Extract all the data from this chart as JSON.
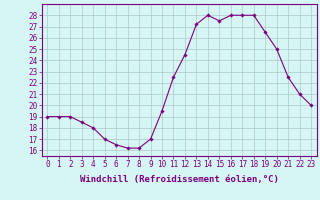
{
  "x": [
    0,
    1,
    2,
    3,
    4,
    5,
    6,
    7,
    8,
    9,
    10,
    11,
    12,
    13,
    14,
    15,
    16,
    17,
    18,
    19,
    20,
    21,
    22,
    23
  ],
  "y": [
    19,
    19,
    19,
    18.5,
    18,
    17,
    16.5,
    16.2,
    16.2,
    17,
    19.5,
    22.5,
    24.5,
    27.2,
    28,
    27.5,
    28,
    28,
    28,
    26.5,
    25,
    22.5,
    21,
    20
  ],
  "line_color": "#7b0080",
  "marker": "D",
  "marker_size": 1.8,
  "bg_color": "#d6f5f5",
  "grid_color": "#b0c8c8",
  "xlabel": "Windchill (Refroidissement éolien,°C)",
  "ylim": [
    15.5,
    29
  ],
  "xlim": [
    -0.5,
    23.5
  ],
  "yticks": [
    16,
    17,
    18,
    19,
    20,
    21,
    22,
    23,
    24,
    25,
    26,
    27,
    28
  ],
  "xticks": [
    0,
    1,
    2,
    3,
    4,
    5,
    6,
    7,
    8,
    9,
    10,
    11,
    12,
    13,
    14,
    15,
    16,
    17,
    18,
    19,
    20,
    21,
    22,
    23
  ],
  "tick_fontsize": 5.5,
  "xlabel_fontsize": 6.5,
  "label_color": "#7b0080"
}
